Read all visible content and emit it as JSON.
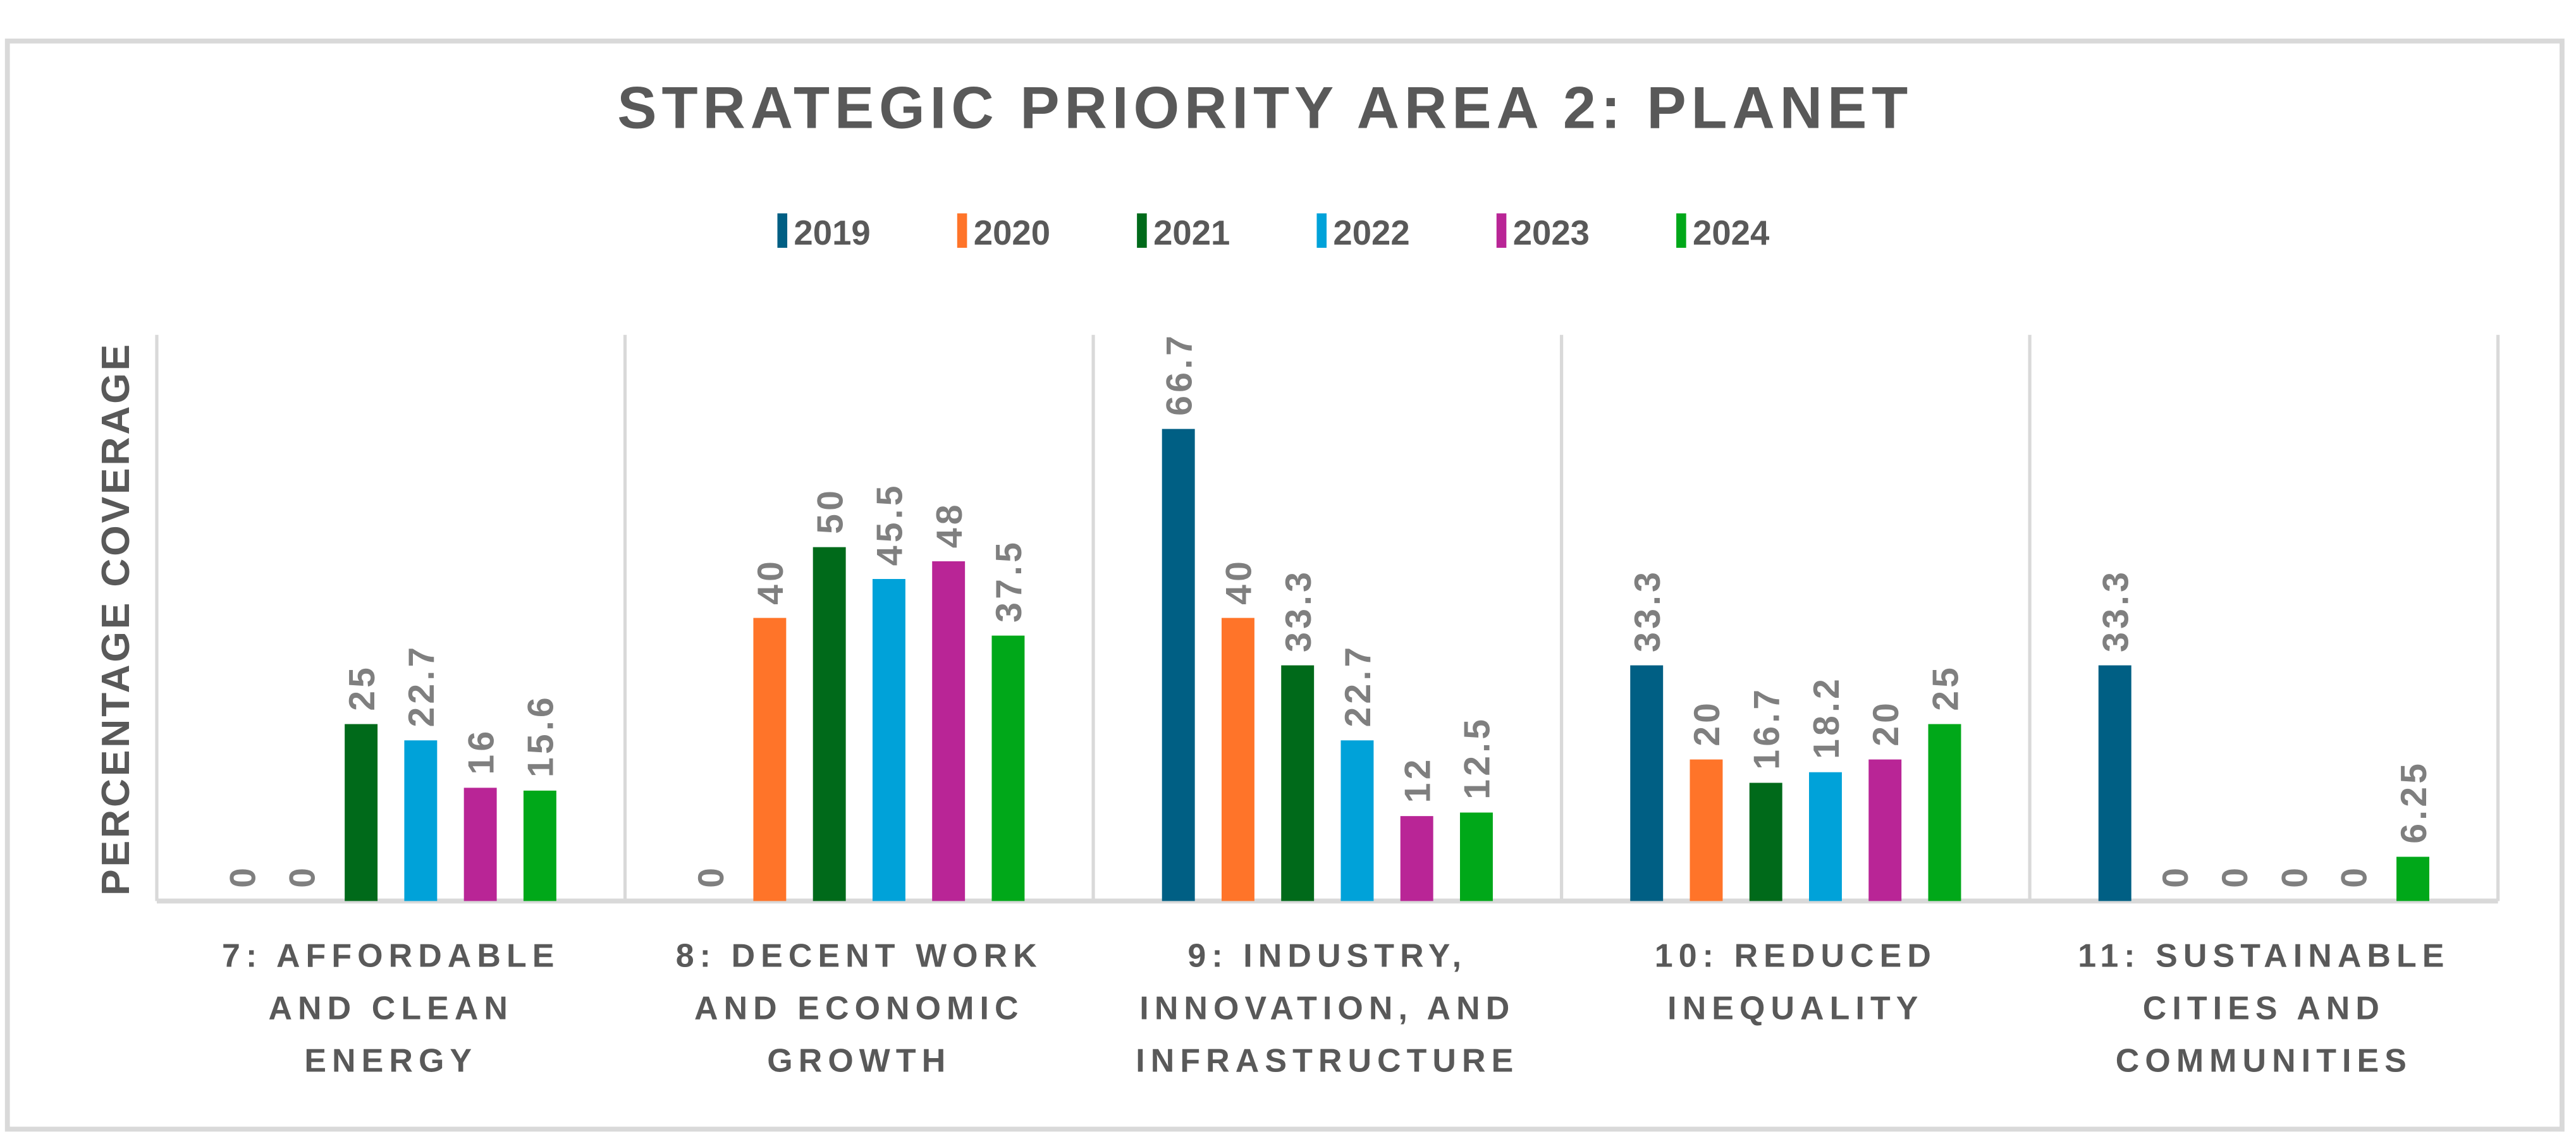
{
  "chart_data": {
    "type": "bar",
    "title": "STRATEGIC PRIORITY AREA 2: PLANET",
    "xlabel": "",
    "ylabel": "PERCENTAGE COVERAGE",
    "ylim": [
      0,
      80
    ],
    "grid": false,
    "legend_position": "top",
    "categories": [
      [
        "7: AFFORDABLE",
        "AND CLEAN",
        "ENERGY"
      ],
      [
        "8: DECENT WORK",
        "AND ECONOMIC",
        "GROWTH"
      ],
      [
        "9: INDUSTRY,",
        "INNOVATION, AND",
        "INFRASTRUCTURE"
      ],
      [
        "10: REDUCED",
        "INEQUALITY"
      ],
      [
        "11: SUSTAINABLE",
        "CITIES AND",
        "COMMUNITIES"
      ]
    ],
    "series": [
      {
        "name": "2019",
        "color": "#005F84",
        "values": [
          0,
          0,
          66.7,
          33.3,
          33.3
        ],
        "labels": [
          "0",
          "0",
          "66.7",
          "33.3",
          "33.3"
        ]
      },
      {
        "name": "2020",
        "color": "#FF7429",
        "values": [
          0,
          40,
          40,
          20,
          0
        ],
        "labels": [
          "0",
          "40",
          "40",
          "20",
          "0"
        ]
      },
      {
        "name": "2021",
        "color": "#006A1A",
        "values": [
          25,
          50,
          33.3,
          16.7,
          0
        ],
        "labels": [
          "25",
          "50",
          "33.3",
          "16.7",
          "0"
        ]
      },
      {
        "name": "2022",
        "color": "#00A2D9",
        "values": [
          22.7,
          45.5,
          22.7,
          18.2,
          0
        ],
        "labels": [
          "22.7",
          "45.5",
          "22.7",
          "18.2",
          "0"
        ]
      },
      {
        "name": "2023",
        "color": "#B92596",
        "values": [
          16,
          48,
          12,
          20,
          0
        ],
        "labels": [
          "16",
          "48",
          "12",
          "20",
          "0"
        ]
      },
      {
        "name": "2024",
        "color": "#00A819",
        "values": [
          15.6,
          37.5,
          12.5,
          25,
          6.25
        ],
        "labels": [
          "15.6",
          "37.5",
          "12.5",
          "25",
          "6.25"
        ]
      }
    ],
    "hidden_labels_note": null
  }
}
